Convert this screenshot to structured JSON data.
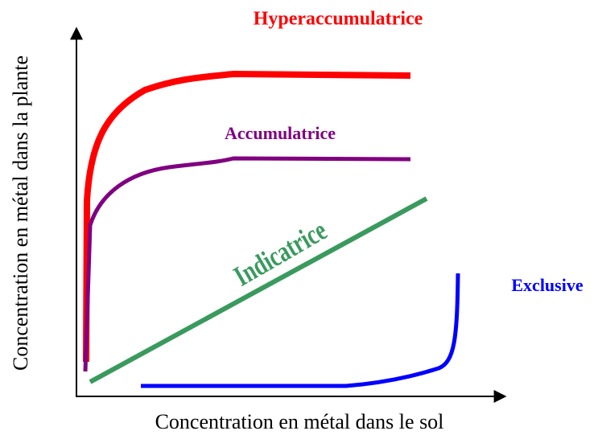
{
  "diagram": {
    "y_label": "Concentration en métal dans la plante",
    "x_label": "Concentration en métal dans le sol",
    "curves": [
      {
        "label": "Hyperaccumulatrice"
      },
      {
        "label": "Accumulatrice"
      },
      {
        "label": "Indicatrice"
      },
      {
        "label": "Exclusive"
      }
    ]
  }
}
